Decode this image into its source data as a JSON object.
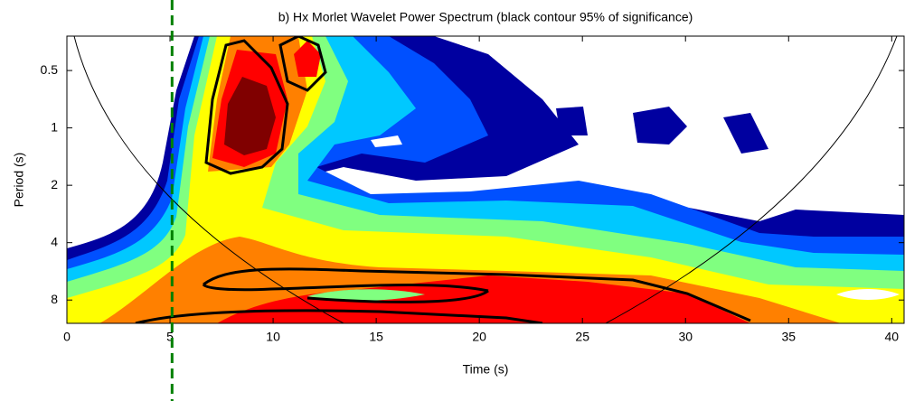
{
  "chart_data": {
    "type": "contour",
    "title": "b) Hx Morlet Wavelet Power Spectrum (black contour 95% of significance)",
    "xlabel": "Time (s)",
    "ylabel": "Period (s)",
    "xlim": [
      0,
      40.6
    ],
    "xticks": [
      0,
      5,
      10,
      15,
      20,
      25,
      30,
      35,
      40
    ],
    "ylim": [
      0.33,
      10.6
    ],
    "yticks": [
      0.5,
      1,
      2,
      4,
      8
    ],
    "y_scale": "log",
    "y_direction": "reversed",
    "reference_line": {
      "x": 5.1,
      "color": "#008000",
      "style": "dashed"
    }
  }
}
